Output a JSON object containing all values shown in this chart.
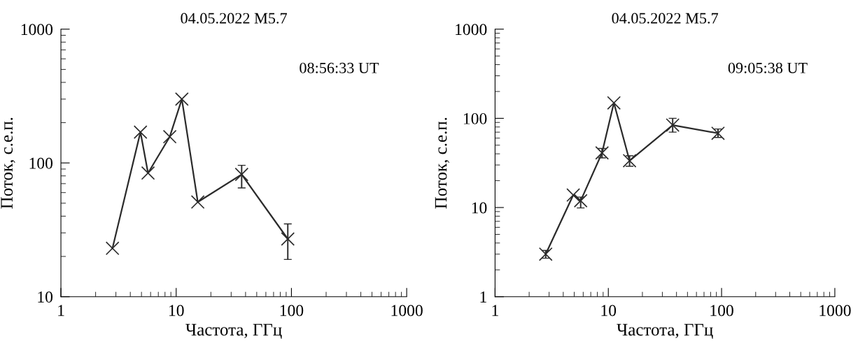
{
  "chart_data": [
    {
      "type": "line",
      "title": "04.05.2022 M5.7",
      "xlabel": "Частота, ГГц",
      "ylabel": "Поток, с.е.п.",
      "log": "xy",
      "marker": "cross",
      "line_style": "solid",
      "grid": false,
      "x": [
        2.8,
        4.9,
        5.7,
        8.8,
        11.2,
        15.4,
        37,
        93
      ],
      "series": [
        {
          "color": "#2b2b2b",
          "values": [
            23,
            170,
            84,
            157,
            300,
            51,
            82,
            27
          ],
          "errors": [
            null,
            null,
            null,
            null,
            null,
            null,
            [
              65,
              96
            ],
            [
              19,
              35
            ]
          ]
        }
      ],
      "xlim": [
        1,
        1000
      ],
      "xticks": [
        1,
        10,
        100,
        1000
      ],
      "ylim": [
        10,
        1000
      ],
      "yticks": [
        10,
        100,
        1000
      ],
      "annotations": [
        "08:56:33 UT"
      ]
    },
    {
      "type": "line",
      "title": "04.05.2022 M5.7",
      "xlabel": "Частота, ГГц",
      "ylabel": "Поток, с.е.п.",
      "log": "xy",
      "marker": "cross",
      "line_style": "solid",
      "grid": false,
      "x": [
        2.8,
        4.9,
        5.7,
        8.8,
        11.2,
        15.4,
        37,
        93
      ],
      "series": [
        {
          "color": "#2b2b2b",
          "values": [
            3.0,
            13.8,
            11.9,
            41,
            149,
            33.5,
            84,
            68
          ],
          "errors": [
            [
              2.7,
              3.3
            ],
            null,
            [
              9.9,
              13.1
            ],
            [
              36,
              46
            ],
            null,
            [
              29,
              38
            ],
            [
              70,
              100
            ],
            [
              61,
              76
            ]
          ]
        }
      ],
      "xlim": [
        1,
        1000
      ],
      "xticks": [
        1,
        10,
        100,
        1000
      ],
      "ylim": [
        1,
        1000
      ],
      "yticks": [
        1,
        10,
        100,
        1000
      ],
      "annotations": [
        "09:05:38 UT"
      ]
    }
  ]
}
